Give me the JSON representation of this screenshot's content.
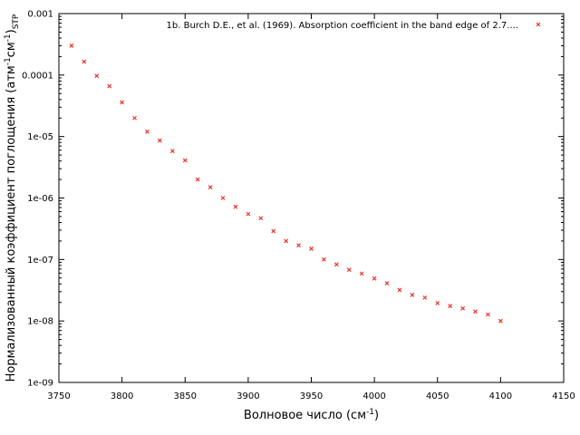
{
  "chart_data": {
    "type": "scatter",
    "title": "",
    "xlabel": "Волновое число (см",
    "xlabel_sup": "-1",
    "xlabel_end": ")",
    "ylabel_parts": {
      "main": "Нормализованный коэффициент поглощения (атм",
      "sup1": "-1",
      "mid": "см",
      "sup2": "-1",
      "close": ")",
      "sub": "STP"
    },
    "xlim": [
      3750,
      4150
    ],
    "ylim": [
      1e-09,
      0.001
    ],
    "yscale": "log",
    "grid": false,
    "legend_position": "top-right",
    "marker_color": "#e8352a",
    "x_ticks": [
      "3750",
      "3800",
      "3850",
      "3900",
      "3950",
      "4000",
      "4050",
      "4100",
      "4150"
    ],
    "y_ticks": [
      "0.001",
      "0.0001",
      "1e-05",
      "1e-06",
      "1e-07",
      "1e-08",
      "1e-09"
    ],
    "series": [
      {
        "name": "1b. Burch D.E., et al. (1969). Absorption coefficient in the band edge of 2.7....",
        "x": [
          3760,
          3770,
          3780,
          3790,
          3800,
          3810,
          3820,
          3830,
          3840,
          3850,
          3860,
          3870,
          3880,
          3890,
          3900,
          3910,
          3920,
          3930,
          3940,
          3950,
          3960,
          3970,
          3980,
          3990,
          4000,
          4010,
          4020,
          4030,
          4040,
          4050,
          4060,
          4070,
          4080,
          4090,
          4100
        ],
        "y": [
          0.0003,
          0.000165,
          9.7e-05,
          6.6e-05,
          3.6e-05,
          2e-05,
          1.2e-05,
          8.6e-06,
          5.8e-06,
          4.1e-06,
          2e-06,
          1.5e-06,
          1e-06,
          7.2e-07,
          5.5e-07,
          4.7e-07,
          2.9e-07,
          2e-07,
          1.7e-07,
          1.5e-07,
          1e-07,
          8.3e-08,
          6.8e-08,
          5.9e-08,
          4.9e-08,
          4.1e-08,
          3.2e-08,
          2.65e-08,
          2.4e-08,
          1.95e-08,
          1.75e-08,
          1.6e-08,
          1.42e-08,
          1.27e-08,
          1e-08
        ]
      }
    ]
  }
}
